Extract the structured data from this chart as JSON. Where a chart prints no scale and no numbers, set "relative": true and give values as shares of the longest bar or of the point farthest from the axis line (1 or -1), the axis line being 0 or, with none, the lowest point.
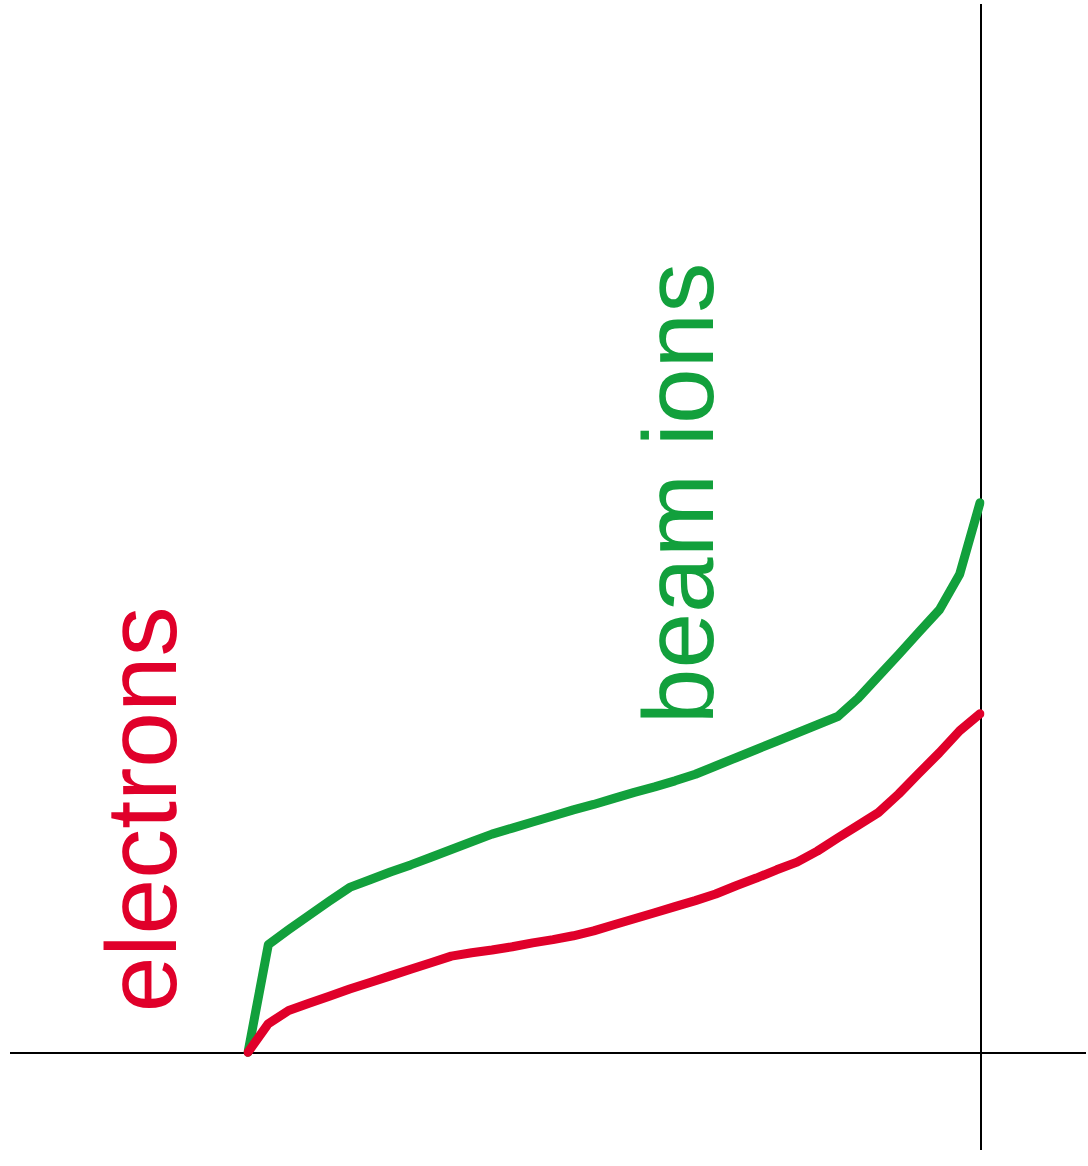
{
  "chart_data": {
    "type": "line",
    "relative": true,
    "marker": "none",
    "line_style": "solid",
    "categories": [
      null,
      null,
      null,
      null,
      null,
      null,
      null,
      null,
      null,
      null,
      null,
      null,
      null,
      null,
      null,
      null,
      null,
      null,
      null,
      null,
      null,
      null,
      null,
      null,
      null,
      null,
      null,
      null,
      null,
      null,
      null,
      null,
      null,
      null,
      null,
      null,
      null
    ],
    "series": [
      {
        "name": "electrons",
        "color": "#e0002a",
        "values": [
          0,
          0.052,
          0.076,
          0.089,
          0.102,
          0.115,
          0.127,
          0.139,
          0.151,
          0.163,
          0.175,
          0.181,
          0.186,
          0.192,
          0.199,
          0.205,
          0.212,
          0.221,
          0.232,
          0.243,
          0.254,
          0.265,
          0.276,
          0.288,
          0.303,
          0.317,
          0.332,
          0.346,
          0.366,
          0.39,
          0.413,
          0.436,
          0.47,
          0.508,
          0.545,
          0.585,
          0.616
        ]
      },
      {
        "name": "beam ions",
        "color": "#12a03c",
        "values": [
          0,
          0.196,
          0.223,
          0.249,
          0.275,
          0.3,
          0.314,
          0.328,
          0.341,
          0.355,
          0.369,
          0.383,
          0.397,
          0.408,
          0.419,
          0.43,
          0.441,
          0.451,
          0.462,
          0.473,
          0.483,
          0.494,
          0.506,
          0.521,
          0.536,
          0.551,
          0.566,
          0.581,
          0.596,
          0.611,
          0.644,
          0.684,
          0.724,
          0.765,
          0.805,
          0.87,
          1
        ]
      }
    ]
  }
}
